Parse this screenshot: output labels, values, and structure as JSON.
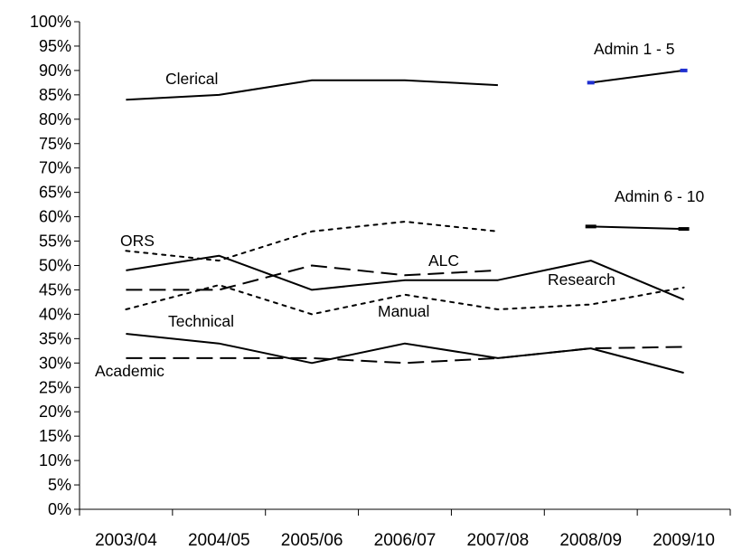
{
  "chart_data": {
    "type": "line",
    "categories": [
      "2003/04",
      "2004/05",
      "2005/06",
      "2006/07",
      "2007/08",
      "2008/09",
      "2009/10"
    ],
    "ylim": [
      0,
      100
    ],
    "y_ticks": [
      "0%",
      "5%",
      "10%",
      "15%",
      "20%",
      "25%",
      "30%",
      "35%",
      "40%",
      "45%",
      "50%",
      "55%",
      "60%",
      "65%",
      "70%",
      "75%",
      "80%",
      "85%",
      "90%",
      "95%",
      "100%"
    ],
    "grid": false,
    "series": [
      {
        "name": "Clerical",
        "style": "solid",
        "color": "#000000",
        "values": [
          84,
          85,
          88,
          88,
          87,
          null,
          null
        ]
      },
      {
        "name": "Admin 1 - 5",
        "style": "solid",
        "color": "#000000",
        "marker_color": "#1f2fd0",
        "values": [
          null,
          null,
          null,
          null,
          null,
          87.5,
          90
        ]
      },
      {
        "name": "Admin 6 - 10",
        "style": "solid",
        "color": "#000000",
        "values": [
          null,
          null,
          null,
          null,
          null,
          58,
          57.5
        ]
      },
      {
        "name": "ORS",
        "style": "dotted",
        "color": "#000000",
        "values": [
          53,
          51,
          57,
          59,
          57,
          null,
          null
        ]
      },
      {
        "name": "Research",
        "style": "solid",
        "color": "#000000",
        "values": [
          49,
          52,
          45,
          47,
          47,
          51,
          43
        ]
      },
      {
        "name": "ALC",
        "style": "dashed",
        "color": "#000000",
        "values": [
          45,
          45,
          50,
          48,
          49,
          null,
          null
        ]
      },
      {
        "name": "Manual",
        "style": "dotted",
        "color": "#000000",
        "values": [
          41,
          46,
          40,
          44,
          41,
          42,
          45.5
        ]
      },
      {
        "name": "Technical",
        "style": "solid",
        "color": "#000000",
        "values": [
          36,
          34,
          30,
          34,
          31,
          33,
          28
        ]
      },
      {
        "name": "Academic",
        "style": "dashed",
        "color": "#000000",
        "values": [
          31,
          31,
          31,
          30,
          31,
          33,
          33.3
        ]
      }
    ]
  }
}
